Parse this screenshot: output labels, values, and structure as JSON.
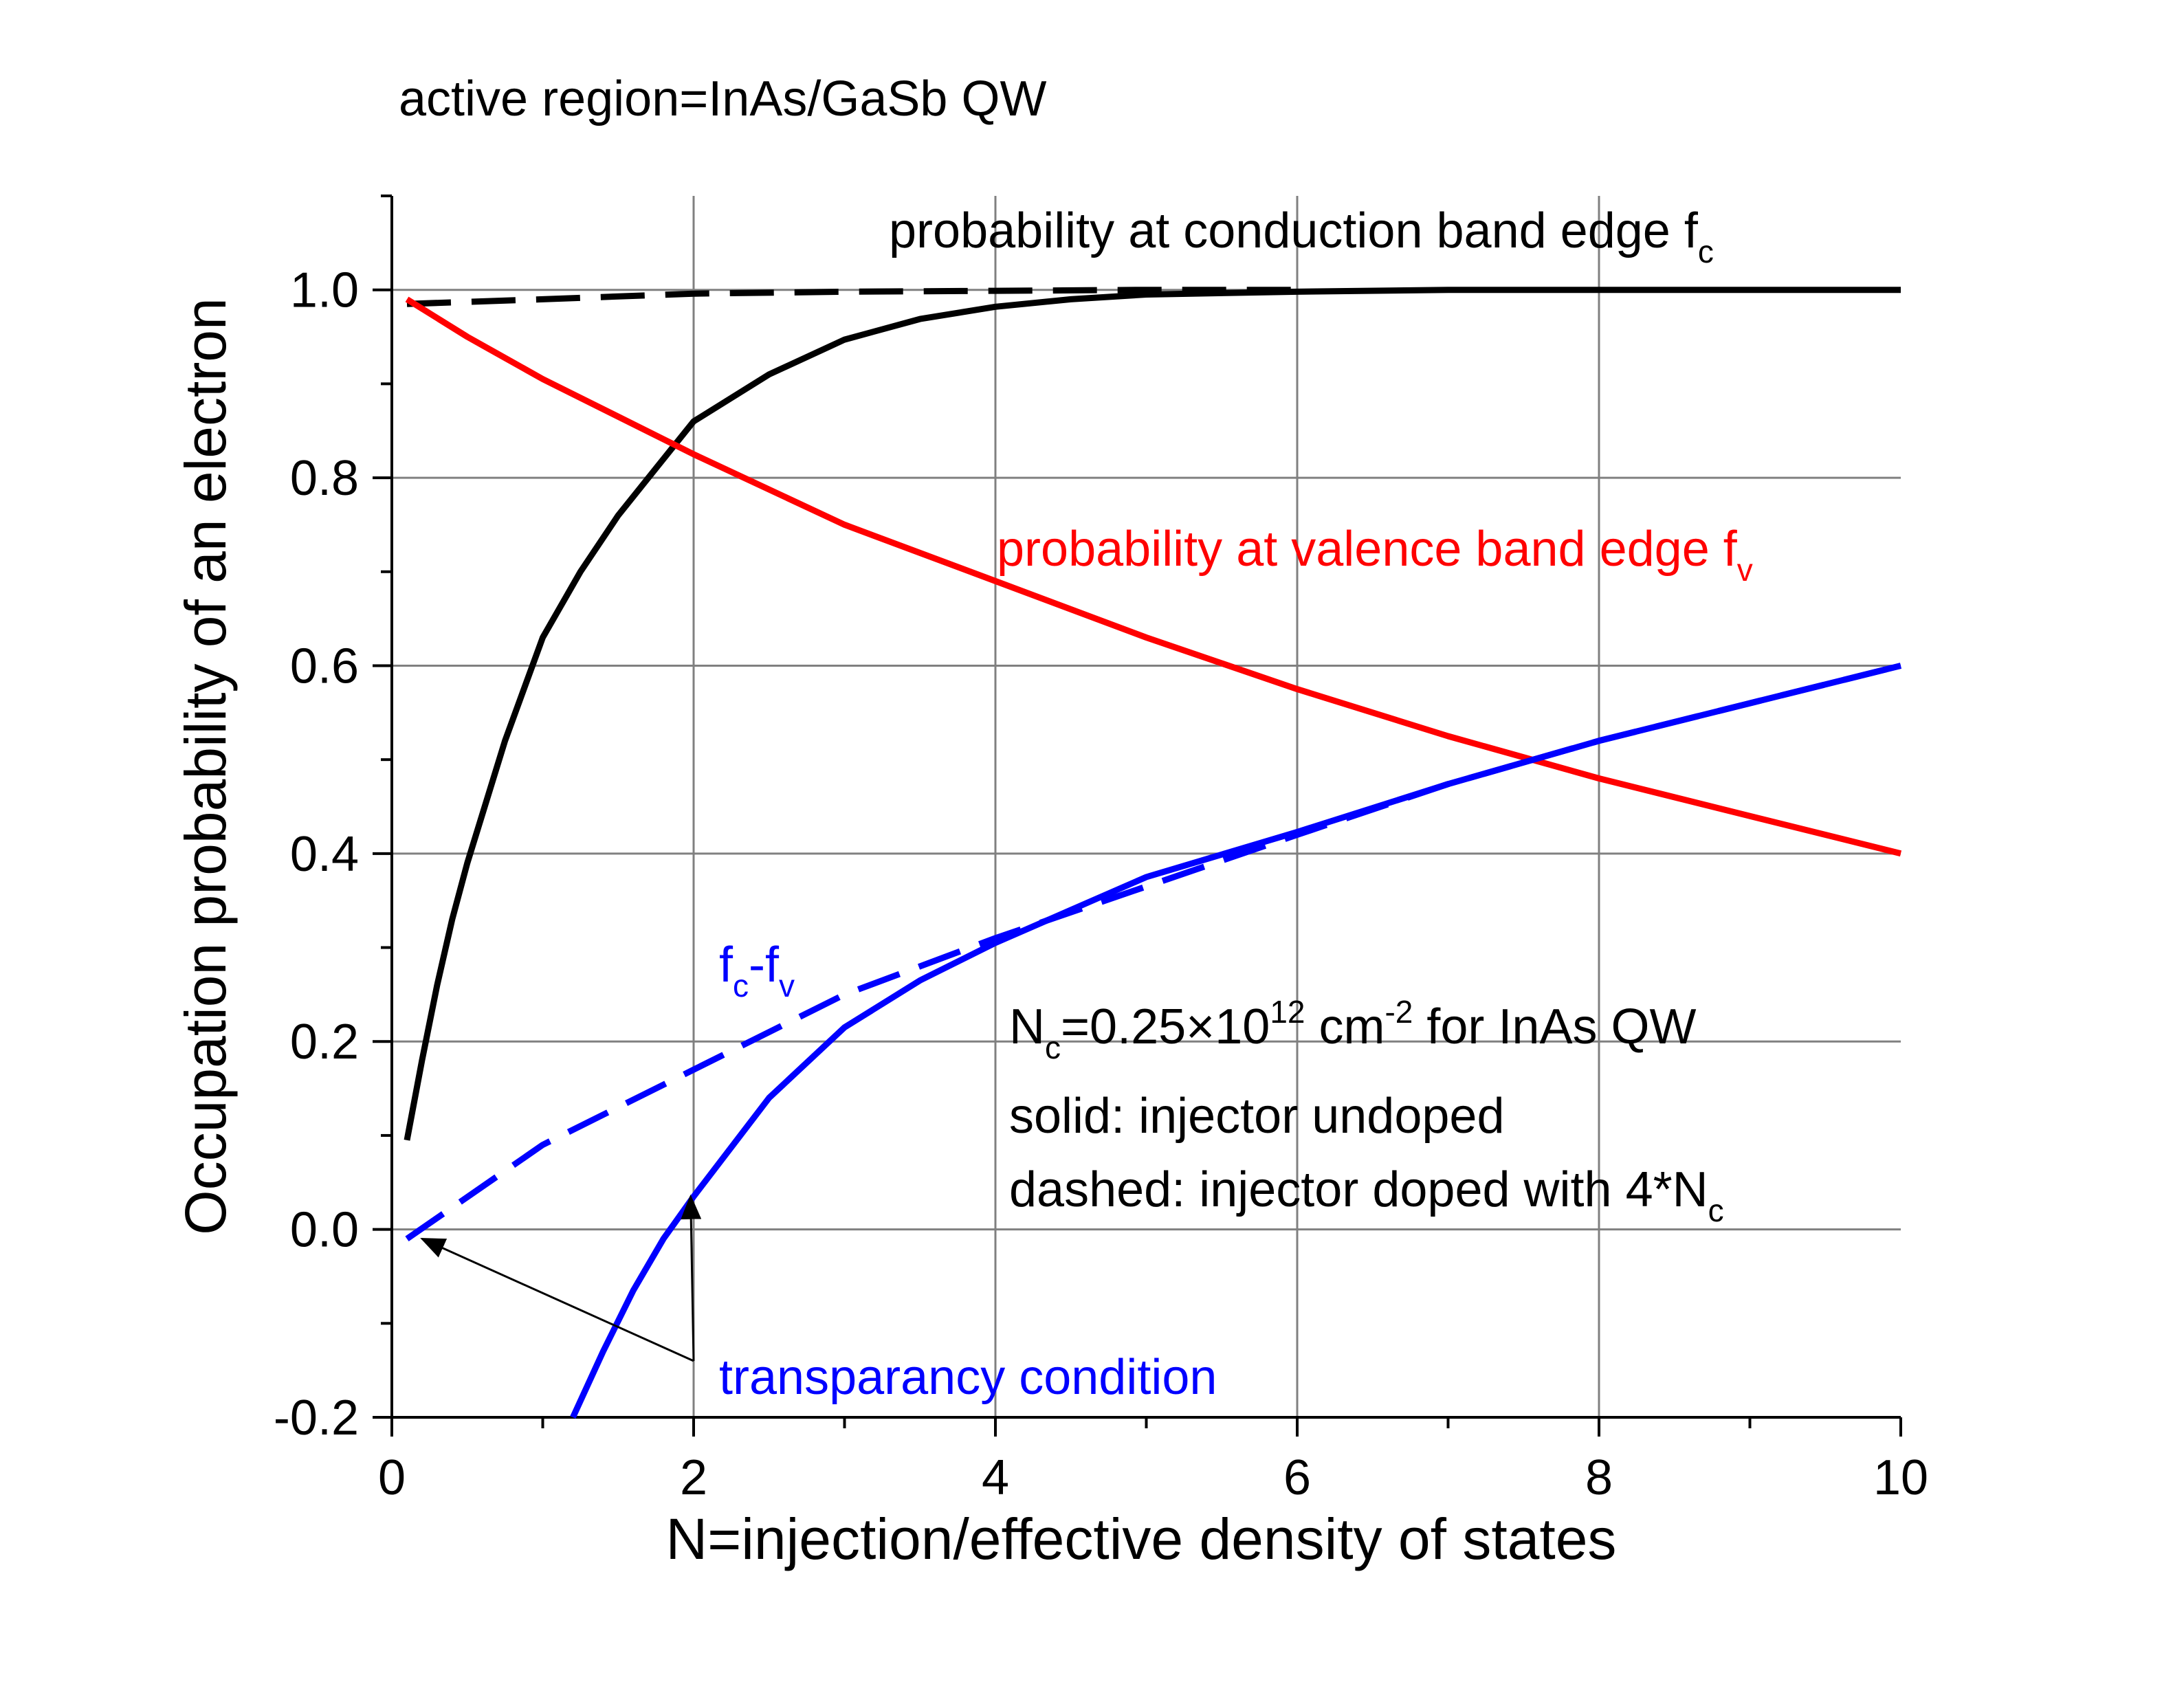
{
  "header": {
    "title": "active region=InAs/GaSb QW"
  },
  "colors": {
    "black": "#000000",
    "red": "#ff0000",
    "blue": "#0000ff",
    "grid": "#808080"
  },
  "chart_data": {
    "type": "line",
    "title": "active region=InAs/GaSb QW",
    "xlabel": "N=injection/effective density of states",
    "ylabel": "Occupation probability of an electron",
    "xlim": [
      0,
      10
    ],
    "ylim": [
      -0.2,
      1.1
    ],
    "x_ticks": [
      0,
      2,
      4,
      6,
      8,
      10
    ],
    "x_tick_labels": [
      "0",
      "2",
      "4",
      "6",
      "8",
      "10"
    ],
    "y_ticks": [
      -0.2,
      0.0,
      0.2,
      0.4,
      0.6,
      0.8,
      1.0
    ],
    "y_tick_labels": [
      "-0.2",
      "0.0",
      "0.2",
      "0.4",
      "0.6",
      "0.8",
      "1.0"
    ],
    "grid": true,
    "series": [
      {
        "key": "fc_solid",
        "color": "#000000",
        "style": "solid",
        "points": [
          [
            0.1,
            0.095
          ],
          [
            0.2,
            0.18
          ],
          [
            0.3,
            0.26
          ],
          [
            0.4,
            0.33
          ],
          [
            0.5,
            0.39
          ],
          [
            0.75,
            0.52
          ],
          [
            1.0,
            0.63
          ],
          [
            1.25,
            0.7
          ],
          [
            1.5,
            0.76
          ],
          [
            1.75,
            0.81
          ],
          [
            2.0,
            0.86
          ],
          [
            2.5,
            0.91
          ],
          [
            3.0,
            0.947
          ],
          [
            3.5,
            0.969
          ],
          [
            4.0,
            0.982
          ],
          [
            4.5,
            0.99
          ],
          [
            5.0,
            0.995
          ],
          [
            6.0,
            0.998
          ],
          [
            7.0,
            1.0
          ],
          [
            10.0,
            1.0
          ]
        ]
      },
      {
        "key": "fc_dashed",
        "color": "#000000",
        "style": "dashed",
        "points": [
          [
            0.1,
            0.985
          ],
          [
            1.0,
            0.99
          ],
          [
            2.0,
            0.996
          ],
          [
            3.0,
            0.998
          ],
          [
            4.0,
            0.999
          ],
          [
            5.0,
            1.0
          ],
          [
            6.0,
            1.0
          ]
        ]
      },
      {
        "key": "fv",
        "color": "#ff0000",
        "style": "solid",
        "points": [
          [
            0.1,
            0.99
          ],
          [
            0.5,
            0.95
          ],
          [
            1.0,
            0.905
          ],
          [
            1.5,
            0.865
          ],
          [
            2.0,
            0.825
          ],
          [
            3.0,
            0.75
          ],
          [
            4.0,
            0.69
          ],
          [
            5.0,
            0.63
          ],
          [
            6.0,
            0.575
          ],
          [
            7.0,
            0.525
          ],
          [
            8.0,
            0.48
          ],
          [
            9.0,
            0.44
          ],
          [
            10.0,
            0.4
          ]
        ]
      },
      {
        "key": "fc_minus_fv_solid",
        "color": "#0000ff",
        "style": "solid",
        "points": [
          [
            1.2,
            -0.2
          ],
          [
            1.4,
            -0.13
          ],
          [
            1.6,
            -0.065
          ],
          [
            1.8,
            -0.01
          ],
          [
            2.0,
            0.035
          ],
          [
            2.5,
            0.14
          ],
          [
            3.0,
            0.215
          ],
          [
            3.5,
            0.265
          ],
          [
            4.0,
            0.305
          ],
          [
            4.5,
            0.34
          ],
          [
            5.0,
            0.375
          ],
          [
            6.0,
            0.423
          ],
          [
            7.0,
            0.474
          ],
          [
            8.0,
            0.52
          ],
          [
            9.0,
            0.56
          ],
          [
            10.0,
            0.6
          ]
        ]
      },
      {
        "key": "fc_minus_fv_dashed",
        "color": "#0000ff",
        "style": "dashed",
        "points": [
          [
            0.1,
            -0.01
          ],
          [
            1.0,
            0.09
          ],
          [
            2.0,
            0.17
          ],
          [
            3.0,
            0.25
          ],
          [
            4.0,
            0.31
          ],
          [
            5.0,
            0.365
          ],
          [
            6.0,
            0.42
          ],
          [
            7.0,
            0.474
          ],
          [
            8.0,
            0.52
          ],
          [
            9.0,
            0.56
          ],
          [
            10.0,
            0.6
          ]
        ]
      }
    ],
    "annotations": {
      "fc_label": {
        "main": "probability at conduction band edge f",
        "sub": "c"
      },
      "fv_label": {
        "main": "probability at valence band edge f",
        "sub": "v"
      },
      "diff_label": {
        "f1": "f",
        "sub1": "c",
        "minus": "-f",
        "sub2": "v"
      },
      "nc_line": {
        "n": "N",
        "sub": "c",
        "value": "=0.25×10",
        "sup1": "12",
        "unit": " cm",
        "sup2": "-2",
        "tail": " for InAs QW"
      },
      "solid_note": "solid: injector undoped",
      "dashed_note": {
        "main": "dashed: injector doped with 4*N",
        "sub": "c"
      },
      "transparency": "transparancy condition",
      "arrow_targets": [
        [
          0.2,
          -0.01
        ],
        [
          1.98,
          0.035
        ]
      ],
      "arrow_origin": [
        2.0,
        -0.14
      ]
    }
  }
}
